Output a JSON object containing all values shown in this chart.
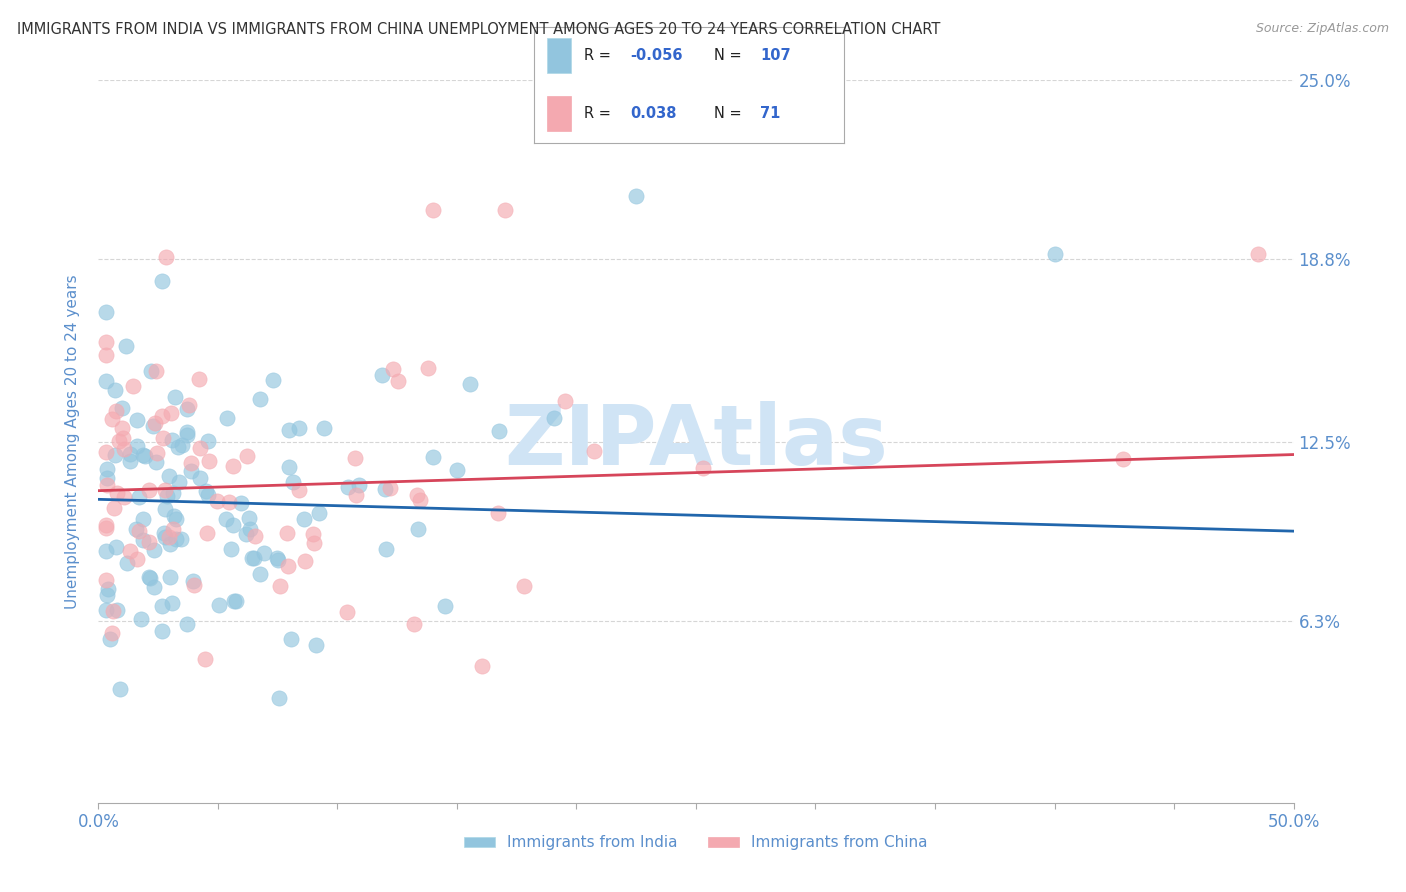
{
  "title": "IMMIGRANTS FROM INDIA VS IMMIGRANTS FROM CHINA UNEMPLOYMENT AMONG AGES 20 TO 24 YEARS CORRELATION CHART",
  "source": "Source: ZipAtlas.com",
  "ylabel": "Unemployment Among Ages 20 to 24 years",
  "xlim": [
    0.0,
    50.0
  ],
  "ylim": [
    0.0,
    25.0
  ],
  "ytick_vals": [
    6.3,
    12.5,
    18.8,
    25.0
  ],
  "ytick_labels": [
    "6.3%",
    "12.5%",
    "18.8%",
    "25.0%"
  ],
  "india_color": "#92c5de",
  "china_color": "#f4a9b0",
  "india_line_color": "#2166ac",
  "china_line_color": "#d6455a",
  "india_R": -0.056,
  "india_N": 107,
  "china_R": 0.038,
  "china_N": 71,
  "india_label": "Immigrants from India",
  "china_label": "Immigrants from China",
  "background_color": "#ffffff",
  "grid_color": "#cccccc",
  "watermark": "ZIPAtlas",
  "watermark_color": "#d0e4f5",
  "title_color": "#333333",
  "axis_label_color": "#5b8fcc",
  "tick_label_color": "#5b8fcc",
  "india_intercept": 10.5,
  "india_slope": -0.022,
  "china_intercept": 10.8,
  "china_slope": 0.025
}
